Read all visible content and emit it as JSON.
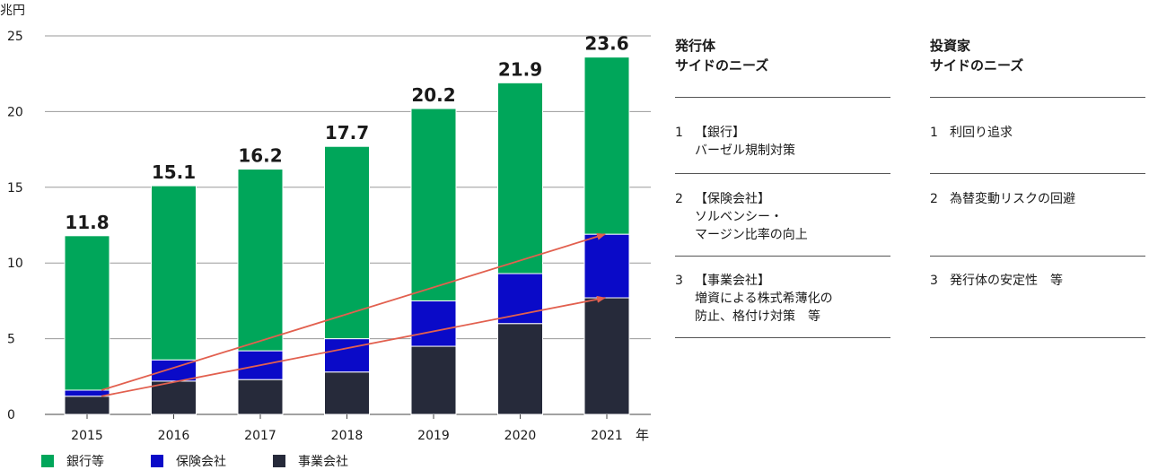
{
  "chart_data": {
    "type": "bar",
    "stacked": true,
    "unit_label": "兆円",
    "x_unit": "年",
    "categories": [
      "2015",
      "2016",
      "2017",
      "2018",
      "2019",
      "2020",
      "2021"
    ],
    "ylim": [
      0,
      25
    ],
    "yticks": [
      0,
      5,
      10,
      15,
      20,
      25
    ],
    "grid": true,
    "series": [
      {
        "name": "事業会社",
        "color": "#262a3a",
        "values": [
          1.2,
          2.2,
          2.3,
          2.8,
          4.5,
          6.0,
          7.7
        ]
      },
      {
        "name": "保険会社",
        "color": "#0a0ac8",
        "values": [
          0.4,
          1.4,
          1.9,
          2.2,
          3.0,
          3.3,
          4.2
        ]
      },
      {
        "name": "銀行等",
        "color": "#00a65a",
        "values": [
          10.2,
          11.5,
          12.0,
          12.7,
          12.7,
          12.6,
          11.7
        ]
      }
    ],
    "totals": [
      "11.8",
      "15.1",
      "16.2",
      "17.7",
      "20.2",
      "21.9",
      "23.6"
    ],
    "legend": [
      "銀行等",
      "保険会社",
      "事業会社"
    ],
    "arrow_color": "#e2604f",
    "arrows": [
      {
        "from": [
          "2015",
          1.6
        ],
        "to": [
          "2021",
          11.9
        ]
      },
      {
        "from": [
          "2015",
          1.2
        ],
        "to": [
          "2021",
          7.7
        ]
      }
    ]
  },
  "issuer": {
    "heading": "発行体\nサイドのニーズ",
    "items": [
      {
        "num": "1",
        "text": "【銀行】\nバーゼル規制対策"
      },
      {
        "num": "2",
        "text": "【保険会社】\nソルベンシー・\nマージン比率の向上"
      },
      {
        "num": "3",
        "text": "【事業会社】\n増資による株式希薄化の\n防止、格付け対策　等"
      }
    ]
  },
  "investor": {
    "heading": "投資家\nサイドのニーズ",
    "items": [
      {
        "num": "1",
        "text": "利回り追求"
      },
      {
        "num": "2",
        "text": "為替変動リスクの回避"
      },
      {
        "num": "3",
        "text": "発行体の安定性　等"
      }
    ]
  }
}
